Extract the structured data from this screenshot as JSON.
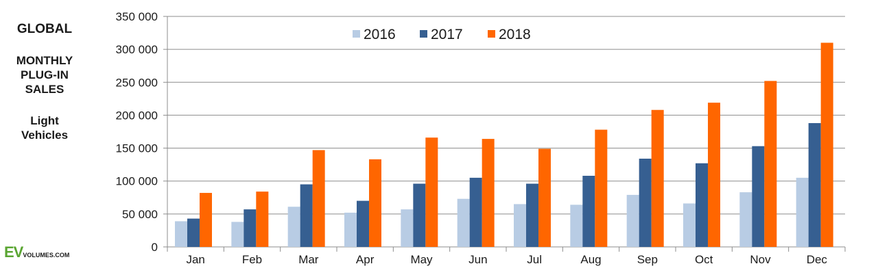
{
  "side_title": {
    "line1": "GLOBAL",
    "line2a": "MONTHLY",
    "line2b": "PLUG-IN",
    "line2c": "SALES",
    "line3a": "Light",
    "line3b": "Vehicles"
  },
  "logo": {
    "brand": "EV",
    "suffix": "VOLUMES.COM"
  },
  "colors": {
    "2016": "#b8cce4",
    "2017": "#365f91",
    "2018": "#ff6600",
    "gridline": "#8c8c8c",
    "axis": "#8c8c8c"
  },
  "chart_data": {
    "type": "bar",
    "title": "",
    "xlabel": "",
    "ylabel": "",
    "ylim": [
      0,
      350000
    ],
    "yticks": [
      0,
      50000,
      100000,
      150000,
      200000,
      250000,
      300000,
      350000
    ],
    "ytick_labels": [
      "0",
      "50 000",
      "100 000",
      "150 000",
      "200 000",
      "250 000",
      "300 000",
      "350 000"
    ],
    "grid": true,
    "legend_position": "top-center",
    "categories": [
      "Jan",
      "Feb",
      "Mar",
      "Apr",
      "May",
      "Jun",
      "Jul",
      "Aug",
      "Sep",
      "Oct",
      "Nov",
      "Dec"
    ],
    "series": [
      {
        "name": "2016",
        "values": [
          39000,
          38000,
          61000,
          52000,
          57000,
          73000,
          65000,
          64000,
          79000,
          66000,
          83000,
          105000
        ]
      },
      {
        "name": "2017",
        "values": [
          43000,
          57000,
          95000,
          70000,
          96000,
          105000,
          96000,
          108000,
          134000,
          127000,
          153000,
          188000
        ]
      },
      {
        "name": "2018",
        "values": [
          82000,
          84000,
          147000,
          133000,
          166000,
          164000,
          149000,
          178000,
          208000,
          219000,
          252000,
          310000
        ]
      }
    ]
  }
}
